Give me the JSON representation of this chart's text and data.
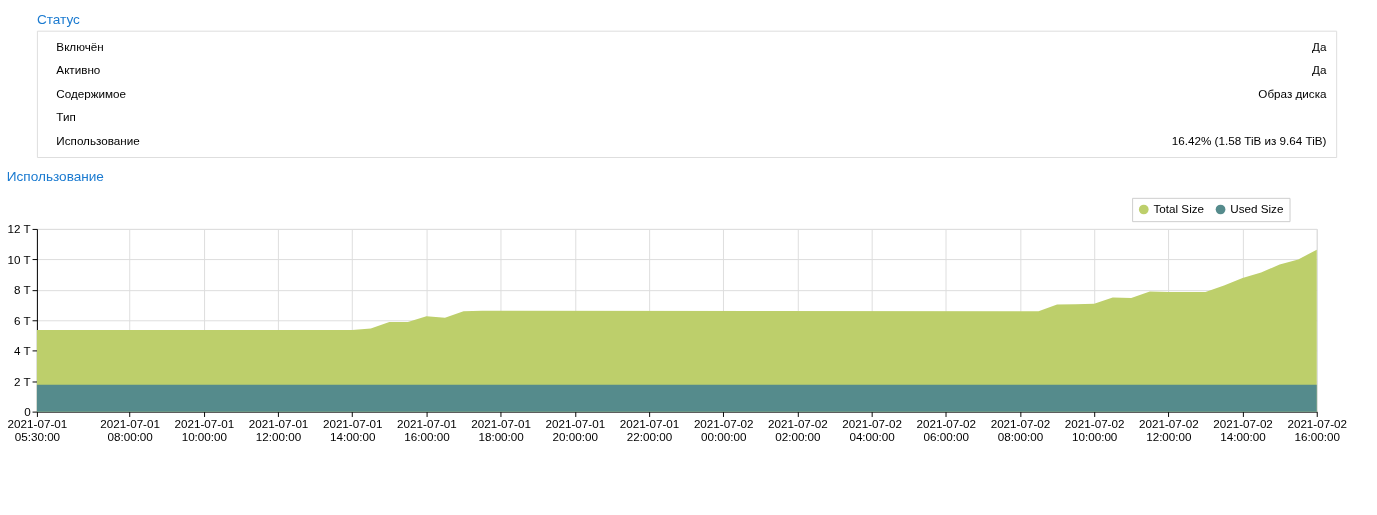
{
  "chart_data": [
    {
      "type": "other",
      "title": "Статус",
      "categories": [
        "Включён",
        "Активно",
        "Содержимое",
        "Тип",
        "Использование"
      ],
      "value_labels": [
        "Да",
        "Да",
        "Образ диска",
        null,
        "16.42% (1.58 TiB из 9.64 TiB)"
      ]
    },
    {
      "type": "area",
      "title": "Использование",
      "x": [
        "2021-07-01T05:30",
        "2021-07-01T14:00",
        "2021-07-01T14:30",
        "2021-07-01T15:00",
        "2021-07-01T15:30",
        "2021-07-01T16:00",
        "2021-07-01T16:30",
        "2021-07-01T17:00",
        "2021-07-01T17:30",
        "2021-07-02T08:30",
        "2021-07-02T09:00",
        "2021-07-02T09:30",
        "2021-07-02T10:00",
        "2021-07-02T10:30",
        "2021-07-02T11:00",
        "2021-07-02T11:30",
        "2021-07-02T12:00",
        "2021-07-02T13:00",
        "2021-07-02T13:30",
        "2021-07-02T14:00",
        "2021-07-02T14:30",
        "2021-07-02T15:00",
        "2021-07-02T15:30",
        "2021-07-02T16:00"
      ],
      "series": [
        {
          "name": "Total Size",
          "color": "#bdcf6b",
          "values": [
            5.37,
            5.37,
            5.46,
            5.89,
            5.89,
            6.26,
            6.17,
            6.6,
            6.63,
            6.6,
            7.03,
            7.06,
            7.09,
            7.49,
            7.46,
            7.89,
            7.86,
            7.86,
            8.29,
            8.77,
            9.14,
            9.66,
            10.0,
            10.63
          ]
        },
        {
          "name": "Used Size",
          "color": "#558b8c",
          "values": [
            1.77,
            1.77,
            1.77,
            1.77,
            1.77,
            1.77,
            1.77,
            1.77,
            1.77,
            1.77,
            1.77,
            1.77,
            1.77,
            1.77,
            1.77,
            1.77,
            1.77,
            1.77,
            1.77,
            1.77,
            1.77,
            1.77,
            1.77,
            1.77
          ]
        }
      ],
      "xlim": [
        "2021-07-01T05:30",
        "2021-07-02T16:00"
      ],
      "xticks": [
        {
          "value": "2021-07-01T05:30",
          "label": "2021-07-01\n05:30:00"
        },
        {
          "value": "2021-07-01T08:00",
          "label": "2021-07-01\n08:00:00"
        },
        {
          "value": "2021-07-01T10:00",
          "label": "2021-07-01\n10:00:00"
        },
        {
          "value": "2021-07-01T12:00",
          "label": "2021-07-01\n12:00:00"
        },
        {
          "value": "2021-07-01T14:00",
          "label": "2021-07-01\n14:00:00"
        },
        {
          "value": "2021-07-01T16:00",
          "label": "2021-07-01\n16:00:00"
        },
        {
          "value": "2021-07-01T18:00",
          "label": "2021-07-01\n18:00:00"
        },
        {
          "value": "2021-07-01T20:00",
          "label": "2021-07-01\n20:00:00"
        },
        {
          "value": "2021-07-01T22:00",
          "label": "2021-07-01\n22:00:00"
        },
        {
          "value": "2021-07-02T00:00",
          "label": "2021-07-02\n00:00:00"
        },
        {
          "value": "2021-07-02T02:00",
          "label": "2021-07-02\n02:00:00"
        },
        {
          "value": "2021-07-02T04:00",
          "label": "2021-07-02\n04:00:00"
        },
        {
          "value": "2021-07-02T06:00",
          "label": "2021-07-02\n06:00:00"
        },
        {
          "value": "2021-07-02T08:00",
          "label": "2021-07-02\n08:00:00"
        },
        {
          "value": "2021-07-02T10:00",
          "label": "2021-07-02\n10:00:00"
        },
        {
          "value": "2021-07-02T12:00",
          "label": "2021-07-02\n12:00:00"
        },
        {
          "value": "2021-07-02T14:00",
          "label": "2021-07-02\n14:00:00"
        },
        {
          "value": "2021-07-02T16:00",
          "label": "2021-07-02\n16:00:00"
        }
      ],
      "ylim": [
        0,
        12
      ],
      "yticks": [
        0,
        {
          "value": 2,
          "label": "2 T"
        },
        {
          "value": 4,
          "label": "4 T"
        },
        {
          "value": 6,
          "label": "6 T"
        },
        {
          "value": 8,
          "label": "8 T"
        },
        {
          "value": 10,
          "label": "10 T"
        },
        {
          "value": 12,
          "label": "12 T"
        }
      ],
      "grid": true,
      "legend": "top right"
    }
  ]
}
